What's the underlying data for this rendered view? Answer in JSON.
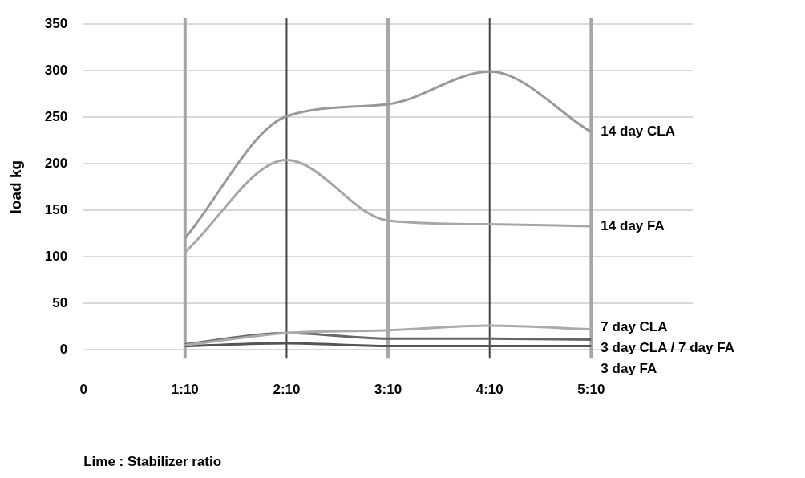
{
  "chart_data": {
    "type": "line",
    "xlabel": "Lime : Stabilizer ratio",
    "ylabel": "load kg",
    "categories": [
      "0",
      "1:10",
      "2:10",
      "3:10",
      "4:10",
      "5:10"
    ],
    "series": [
      {
        "name": "14 day CLA",
        "color": "#999999",
        "values": [
          null,
          120,
          251,
          264,
          299,
          234
        ]
      },
      {
        "name": "14 day FA",
        "color": "#a6a6a6",
        "values": [
          null,
          105,
          204,
          139,
          135,
          133
        ]
      },
      {
        "name": "7 day CLA",
        "color": "#aaaaaa",
        "values": [
          null,
          5,
          18,
          21,
          26,
          22
        ]
      },
      {
        "name": "3 day CLA / 7 day FA",
        "color": "#666666",
        "values": [
          null,
          6,
          18,
          12,
          12,
          11
        ]
      },
      {
        "name": "3 day FA",
        "color": "#555555",
        "values": [
          null,
          4,
          7,
          4,
          4,
          4
        ]
      }
    ],
    "ylim": [
      0,
      350
    ],
    "yticks": [
      0,
      50,
      100,
      150,
      200,
      250,
      300,
      350
    ],
    "grid": "y",
    "legend": false,
    "marker": "none",
    "line_style": "solid",
    "ref_lines": [
      {
        "axis": "x",
        "value": "1:10",
        "color": "#a6a6a6"
      },
      {
        "axis": "x",
        "value": "2:10",
        "color": "#444444"
      },
      {
        "axis": "x",
        "value": "3:10",
        "color": "#a6a6a6"
      },
      {
        "axis": "x",
        "value": "4:10",
        "color": "#444444"
      },
      {
        "axis": "x",
        "value": "5:10",
        "color": "#a6a6a6"
      }
    ]
  }
}
